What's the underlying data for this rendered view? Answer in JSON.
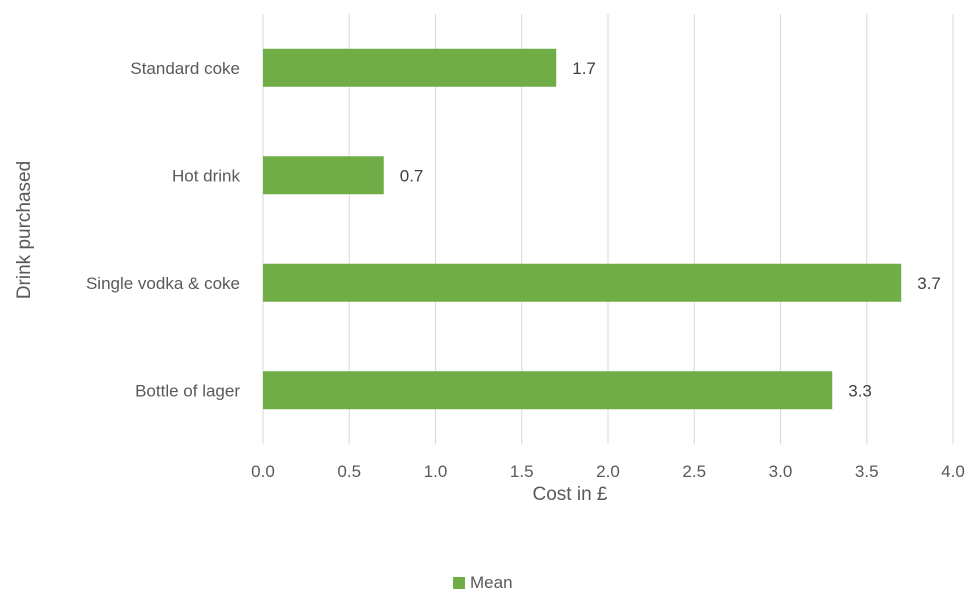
{
  "chart_data": {
    "type": "bar",
    "orientation": "horizontal",
    "title": "",
    "xlabel": "Cost in £",
    "ylabel": "Drink purchased",
    "categories": [
      "Standard coke",
      "Hot drink",
      "Single vodka & coke",
      "Bottle of lager"
    ],
    "series": [
      {
        "name": "Mean",
        "values": [
          1.7,
          0.7,
          3.7,
          3.3
        ],
        "color": "#70ad47"
      }
    ],
    "data_labels": [
      "1.7",
      "0.7",
      "3.7",
      "3.3"
    ],
    "xlim": [
      0,
      4
    ],
    "x_ticks": [
      "0.0",
      "0.5",
      "1.0",
      "1.5",
      "2.0",
      "2.5",
      "3.0",
      "3.5",
      "4.0"
    ],
    "x_tick_values": [
      0,
      0.5,
      1,
      1.5,
      2,
      2.5,
      3,
      3.5,
      4
    ],
    "grid": "vertical",
    "legend": "bottom"
  }
}
